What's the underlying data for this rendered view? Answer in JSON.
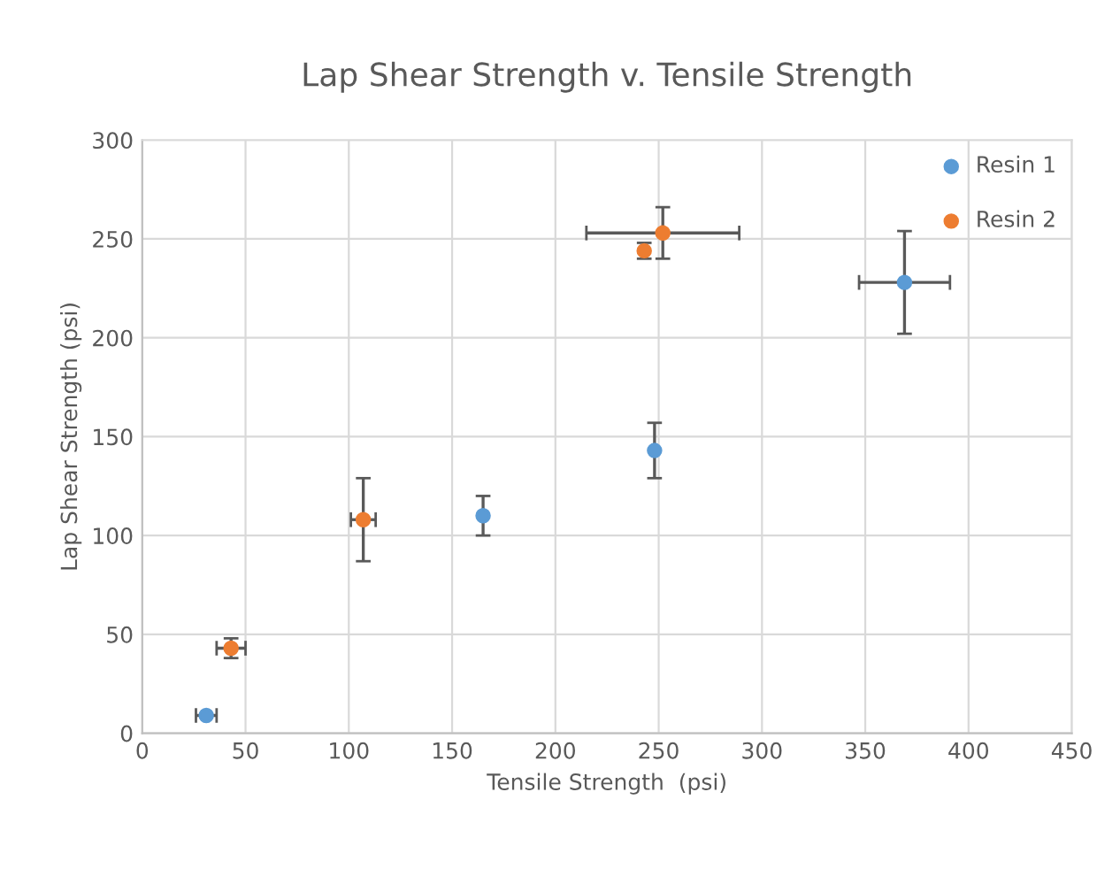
{
  "chart_data": {
    "type": "scatter",
    "title": "Lap Shear Strength v. Tensile Strength",
    "xlabel": "Tensile Strength  (psi)",
    "ylabel": "Lap Shear Strength (psi)",
    "series": [
      {
        "name": "Resin 1",
        "color": "#5b9bd5",
        "x": [
          31,
          165,
          248,
          369
        ],
        "values": [
          9,
          110,
          143,
          228
        ],
        "errors": [
          null,
          10,
          14,
          26
        ],
        "xerrors": [
          5,
          null,
          null,
          22
        ]
      },
      {
        "name": "Resin 2",
        "color": "#ed7d31",
        "x": [
          43,
          107,
          252,
          243
        ],
        "values": [
          43,
          108,
          253,
          244
        ],
        "errors": [
          5,
          21,
          13,
          4
        ],
        "xerrors": [
          7,
          6,
          37,
          null
        ]
      }
    ],
    "xlim": [
      0,
      450
    ],
    "xticks": [
      0,
      50,
      100,
      150,
      200,
      250,
      300,
      350,
      400,
      450
    ],
    "ylim": [
      0,
      300
    ],
    "yticks": [
      0,
      50,
      100,
      150,
      200,
      250,
      300
    ],
    "grid": true,
    "legend": "top right",
    "marker": "circle"
  }
}
